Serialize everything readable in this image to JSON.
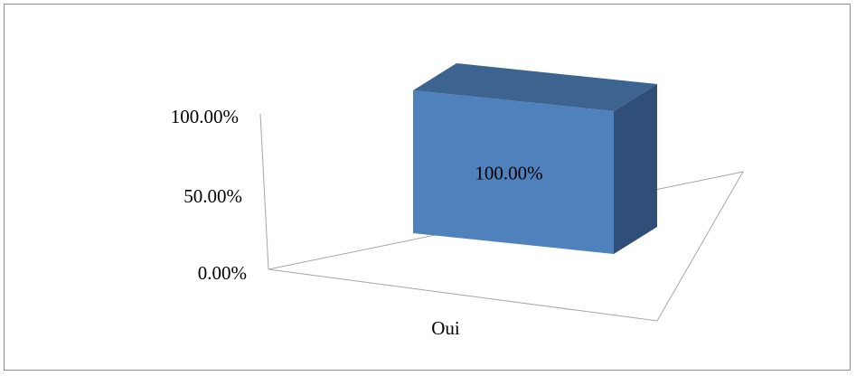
{
  "chart_data": {
    "type": "bar",
    "style": "3d",
    "categories": [
      "Oui"
    ],
    "values": [
      100
    ],
    "value_labels": [
      "100.00%"
    ],
    "y_ticks": [
      "0.00%",
      "50.00%",
      "100.00%"
    ],
    "ylim": [
      0,
      100
    ],
    "title": "",
    "xlabel": "",
    "ylabel": "",
    "grid": false,
    "legend": "none",
    "colors": {
      "front": "#4f81bd",
      "top": "#3d6391",
      "side": "#2f4f79",
      "axis": "#a6a6a6",
      "border": "#8c8c8c"
    }
  }
}
